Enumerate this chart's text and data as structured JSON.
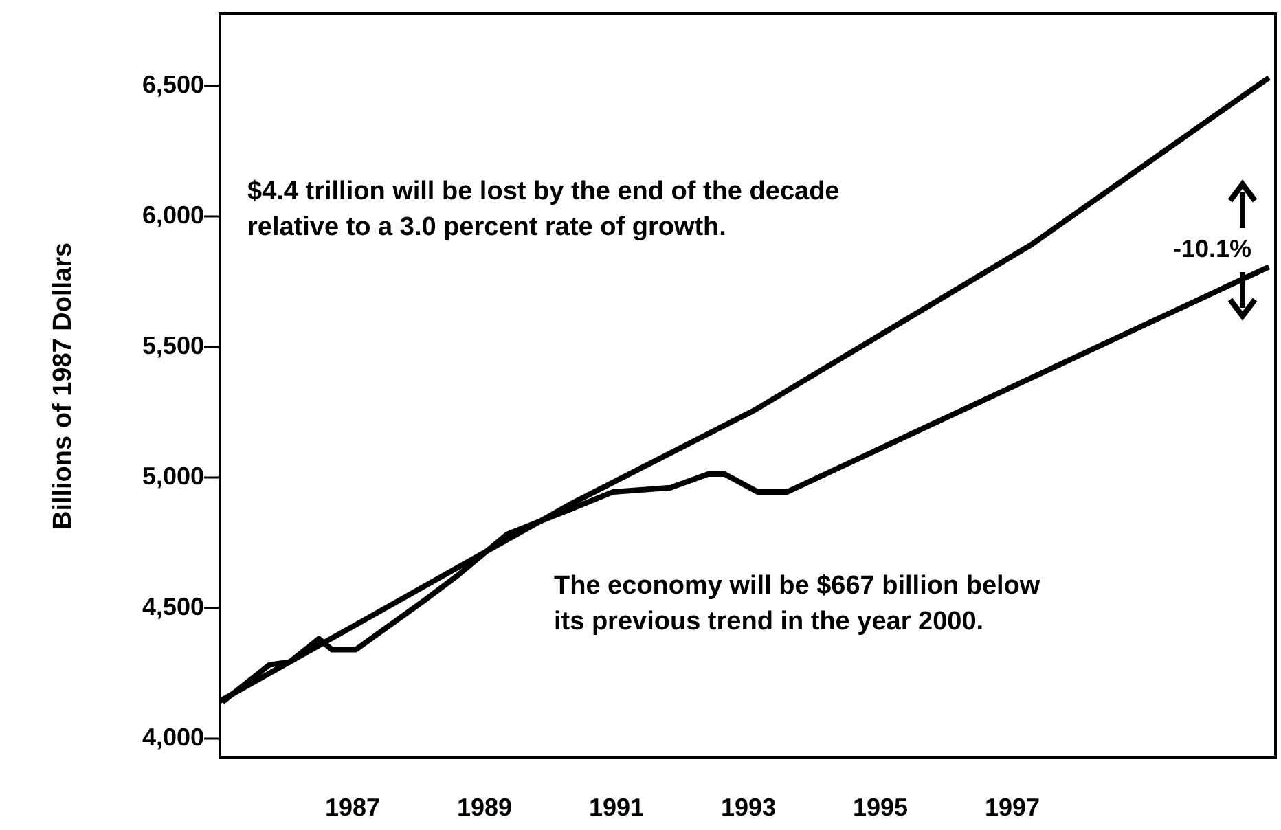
{
  "chart_data": {
    "type": "line",
    "ylabel": "Billions of 1987 Dollars",
    "xlim": [
      1985,
      2001
    ],
    "xticks": [
      1987,
      1989,
      1991,
      1993,
      1995,
      1997
    ],
    "ylim": [
      3925,
      6775
    ],
    "yticks": [
      {
        "value": 4000,
        "label": "4,000"
      },
      {
        "value": 4500,
        "label": "4,500"
      },
      {
        "value": 5000,
        "label": "5,000"
      },
      {
        "value": 5500,
        "label": "5,500"
      },
      {
        "value": 6000,
        "label": "6,000"
      },
      {
        "value": 6500,
        "label": "6,500"
      }
    ],
    "series": [
      {
        "color": "#000000",
        "x": [
          1985.04,
          1985.75,
          1986.06,
          1986.5,
          1986.7,
          1987.06,
          1988.1,
          1988.6,
          1989.35,
          1990.35,
          1990.96,
          1991.83,
          1992.4,
          1992.65,
          1993.15,
          1993.6,
          2000.9
        ],
        "values": [
          4137,
          4279,
          4290,
          4379,
          4337,
          4337,
          4526,
          4621,
          4779,
          4879,
          4942,
          4958,
          5010,
          5010,
          4942,
          4942,
          5805
        ]
      },
      {
        "type": "line",
        "color": "#000000",
        "x": [
          1985,
          1990.35,
          1993.1,
          1997.3,
          2000.9
        ],
        "values": [
          4140,
          4900,
          5255,
          5890,
          6530
        ]
      }
    ],
    "annotations": [
      "$4.4 trillion will be lost by the end of the decade\nrelative to a 3.0 percent rate of growth.",
      "The economy will be $667 billion below\nits previous trend in the year 2000.",
      "-10.1%"
    ],
    "grid": false,
    "line_style": "solid",
    "marker": "none"
  }
}
